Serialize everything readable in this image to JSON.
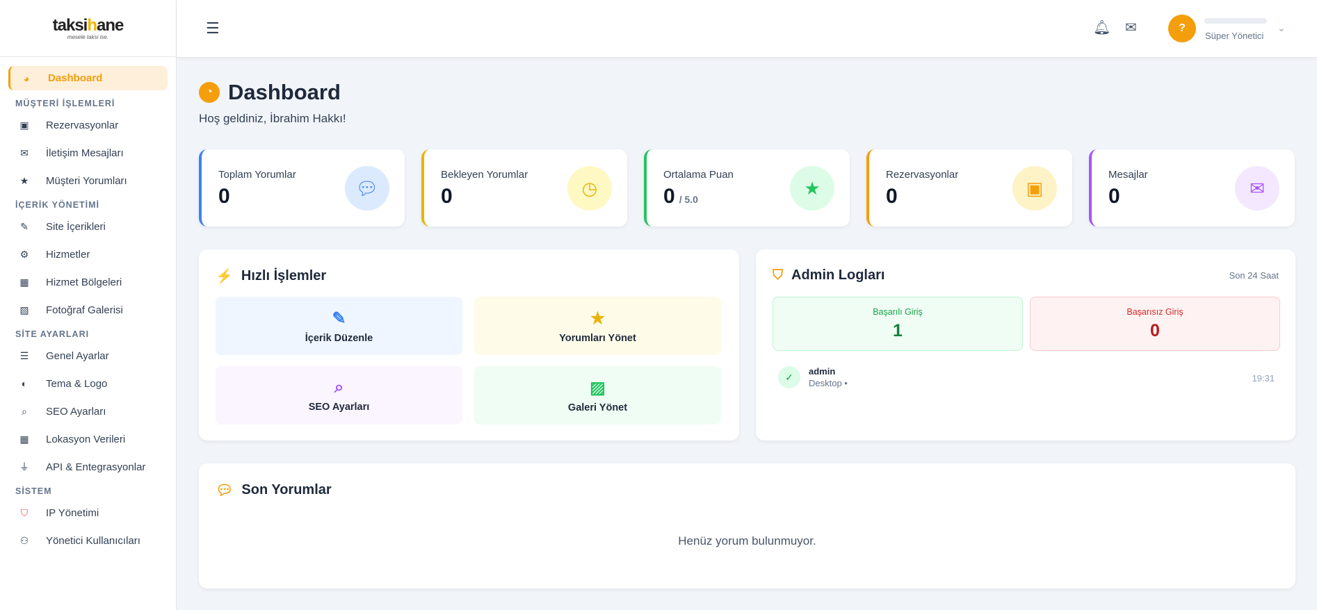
{
  "brand": {
    "name_a": "taksi",
    "name_b": "h",
    "name_c": "ane",
    "tagline": "mesele taksi ise."
  },
  "sidebar": {
    "dashboard": "Dashboard",
    "sections": [
      {
        "title": "MÜŞTERİ İŞLEMLERİ",
        "items": [
          {
            "label": "Rezervasyonlar",
            "icon": "calendar-check-icon"
          },
          {
            "label": "İletişim Mesajları",
            "icon": "envelope-icon"
          },
          {
            "label": "Müşteri Yorumları",
            "icon": "star-icon"
          }
        ]
      },
      {
        "title": "İÇERİK YÖNETİMİ",
        "items": [
          {
            "label": "Site İçerikleri",
            "icon": "edit-icon"
          },
          {
            "label": "Hizmetler",
            "icon": "cogs-icon"
          },
          {
            "label": "Hizmet Bölgeleri",
            "icon": "map-icon"
          },
          {
            "label": "Fotoğraf Galerisi",
            "icon": "images-icon"
          }
        ]
      },
      {
        "title": "SİTE AYARLARI",
        "items": [
          {
            "label": "Genel Ayarlar",
            "icon": "sliders-icon"
          },
          {
            "label": "Tema & Logo",
            "icon": "palette-icon"
          },
          {
            "label": "SEO Ayarları",
            "icon": "search-icon"
          },
          {
            "label": "Lokasyon Verileri",
            "icon": "map-icon"
          },
          {
            "label": "API & Entegrasyonlar",
            "icon": "plug-icon"
          }
        ]
      },
      {
        "title": "SİSTEM",
        "items": [
          {
            "label": "IP Yönetimi",
            "icon": "shield-icon"
          },
          {
            "label": "Yönetici Kullanıcıları",
            "icon": "users-icon"
          }
        ]
      }
    ]
  },
  "header": {
    "avatar_glyph": "?",
    "user_role": "Süper Yönetici"
  },
  "page": {
    "title": "Dashboard",
    "subtitle": "Hoş geldiniz, İbrahim Hakkı!"
  },
  "stats": [
    {
      "label": "Toplam Yorumlar",
      "value": "0",
      "color": "#3b82f6",
      "bg": "#dbeafe",
      "icon": "comments-icon"
    },
    {
      "label": "Bekleyen Yorumlar",
      "value": "0",
      "color": "#eab308",
      "bg": "#fef9c3",
      "icon": "clock-icon"
    },
    {
      "label": "Ortalama Puan",
      "value": "0",
      "suffix": "/ 5.0",
      "color": "#22c55e",
      "bg": "#dcfce7",
      "icon": "star-icon"
    },
    {
      "label": "Rezervasyonlar",
      "value": "0",
      "color": "#f59e0b",
      "bg": "#fef3c7",
      "icon": "calendar-check-icon"
    },
    {
      "label": "Mesajlar",
      "value": "0",
      "color": "#a855f7",
      "bg": "#f3e8ff",
      "icon": "envelope-icon"
    }
  ],
  "quick": {
    "title": "Hızlı İşlemler",
    "actions": [
      {
        "label": "İçerik Düzenle",
        "color": "#3b82f6",
        "bg": "#eff6ff"
      },
      {
        "label": "Yorumları Yönet",
        "color": "#eab308",
        "bg": "#fefce8"
      },
      {
        "label": "SEO Ayarları",
        "color": "#a855f7",
        "bg": "#faf5ff"
      },
      {
        "label": "Galeri Yönet",
        "color": "#22c55e",
        "bg": "#f0fdf4"
      }
    ]
  },
  "logs": {
    "title": "Admin Logları",
    "period": "Son 24 Saat",
    "success_label": "Başarılı Giriş",
    "success_value": "1",
    "fail_label": "Başarısız Giriş",
    "fail_value": "0",
    "entries": [
      {
        "user": "admin",
        "device": "Desktop •",
        "time": "19:31"
      }
    ]
  },
  "reviews": {
    "title": "Son Yorumlar",
    "empty": "Henüz yorum bulunmuyor."
  }
}
